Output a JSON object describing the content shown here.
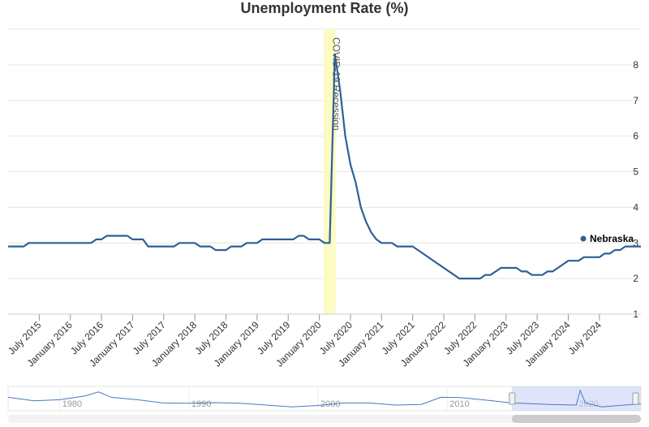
{
  "chart_data": {
    "type": "line",
    "title": "Unemployment Rate (%)",
    "series": [
      {
        "name": "Nebraska",
        "color": "#2f5f98",
        "points": [
          [
            "2015-01",
            2.9
          ],
          [
            "2015-04",
            2.9
          ],
          [
            "2015-05",
            3.0
          ],
          [
            "2015-08",
            3.0
          ],
          [
            "2015-11",
            3.0
          ],
          [
            "2016-02",
            3.0
          ],
          [
            "2016-05",
            3.0
          ],
          [
            "2016-06",
            3.1
          ],
          [
            "2016-07",
            3.1
          ],
          [
            "2016-08",
            3.2
          ],
          [
            "2016-12",
            3.2
          ],
          [
            "2017-01",
            3.1
          ],
          [
            "2017-03",
            3.1
          ],
          [
            "2017-04",
            2.9
          ],
          [
            "2017-09",
            2.9
          ],
          [
            "2017-10",
            3.0
          ],
          [
            "2018-01",
            3.0
          ],
          [
            "2018-02",
            2.9
          ],
          [
            "2018-04",
            2.9
          ],
          [
            "2018-05",
            2.8
          ],
          [
            "2018-07",
            2.8
          ],
          [
            "2018-08",
            2.9
          ],
          [
            "2018-10",
            2.9
          ],
          [
            "2018-11",
            3.0
          ],
          [
            "2019-01",
            3.0
          ],
          [
            "2019-02",
            3.1
          ],
          [
            "2019-08",
            3.1
          ],
          [
            "2019-09",
            3.2
          ],
          [
            "2019-10",
            3.2
          ],
          [
            "2019-11",
            3.1
          ],
          [
            "2020-01",
            3.1
          ],
          [
            "2020-02",
            3.0
          ],
          [
            "2020-03",
            3.0
          ],
          [
            "2020-04",
            8.3
          ],
          [
            "2020-05",
            7.3
          ],
          [
            "2020-06",
            6.0
          ],
          [
            "2020-07",
            5.2
          ],
          [
            "2020-08",
            4.7
          ],
          [
            "2020-09",
            4.0
          ],
          [
            "2020-10",
            3.6
          ],
          [
            "2020-11",
            3.3
          ],
          [
            "2020-12",
            3.1
          ],
          [
            "2021-01",
            3.0
          ],
          [
            "2021-03",
            3.0
          ],
          [
            "2021-04",
            2.9
          ],
          [
            "2021-07",
            2.9
          ],
          [
            "2021-09",
            2.7
          ],
          [
            "2021-12",
            2.4
          ],
          [
            "2022-03",
            2.1
          ],
          [
            "2022-04",
            2.0
          ],
          [
            "2022-08",
            2.0
          ],
          [
            "2022-09",
            2.1
          ],
          [
            "2022-10",
            2.1
          ],
          [
            "2022-11",
            2.2
          ],
          [
            "2022-12",
            2.3
          ],
          [
            "2023-03",
            2.3
          ],
          [
            "2023-04",
            2.2
          ],
          [
            "2023-05",
            2.2
          ],
          [
            "2023-06",
            2.1
          ],
          [
            "2023-08",
            2.1
          ],
          [
            "2023-09",
            2.2
          ],
          [
            "2023-10",
            2.2
          ],
          [
            "2023-11",
            2.3
          ],
          [
            "2024-01",
            2.5
          ],
          [
            "2024-03",
            2.5
          ],
          [
            "2024-04",
            2.6
          ],
          [
            "2024-07",
            2.6
          ],
          [
            "2024-08",
            2.7
          ],
          [
            "2024-09",
            2.7
          ],
          [
            "2024-10",
            2.8
          ],
          [
            "2024-11",
            2.8
          ],
          [
            "2024-12",
            2.9
          ],
          [
            "2025-03",
            2.9
          ]
        ]
      }
    ],
    "x_tick_labels": [
      "July 2015",
      "January 2016",
      "July 2016",
      "January 2017",
      "July 2017",
      "January 2018",
      "July 2018",
      "January 2019",
      "July 2019",
      "January 2020",
      "July 2020",
      "January 2021",
      "July 2021",
      "January 2022",
      "July 2022",
      "January 2023",
      "July 2023",
      "January 2024",
      "July 2024"
    ],
    "x_range": [
      "2015-01",
      "2025-03"
    ],
    "y_ticks": [
      1,
      2,
      3,
      4,
      5,
      6,
      7,
      8
    ],
    "ylim": [
      1,
      9
    ],
    "y_axis_side": "right",
    "grid": true,
    "legend": {
      "entry": "Nebraska",
      "placement": "right, at end of line"
    },
    "recession_band": {
      "label": "COVID-19 Recession",
      "start": "2020-02",
      "end": "2020-04",
      "color": "#fbfbc3"
    },
    "navigator": {
      "tick_labels": [
        "1980",
        "1990",
        "2000",
        "2010",
        "2020"
      ],
      "range": [
        1976,
        2025
      ],
      "selected_range": [
        "2015-01",
        "2025-03"
      ],
      "series": [
        [
          1976,
          0.62
        ],
        [
          1978,
          0.42
        ],
        [
          1980,
          0.48
        ],
        [
          1982,
          0.7
        ],
        [
          1983,
          0.92
        ],
        [
          1984,
          0.62
        ],
        [
          1986,
          0.48
        ],
        [
          1988,
          0.3
        ],
        [
          1990,
          0.28
        ],
        [
          1992,
          0.32
        ],
        [
          1994,
          0.28
        ],
        [
          1996,
          0.18
        ],
        [
          1998,
          0.08
        ],
        [
          2000,
          0.16
        ],
        [
          2002,
          0.3
        ],
        [
          2004,
          0.3
        ],
        [
          2006,
          0.18
        ],
        [
          2008,
          0.22
        ],
        [
          2009.5,
          0.62
        ],
        [
          2011,
          0.6
        ],
        [
          2013,
          0.46
        ],
        [
          2015,
          0.3
        ],
        [
          2018,
          0.22
        ],
        [
          2020,
          0.18
        ],
        [
          2020.3,
          1.0
        ],
        [
          2020.7,
          0.3
        ],
        [
          2022,
          0.08
        ],
        [
          2024,
          0.2
        ],
        [
          2025,
          0.24
        ]
      ]
    }
  },
  "colors": {
    "line": "#2f5f98",
    "grid": "#e6e6e6",
    "axis": "#333333",
    "navigator_mask": "#c8d3f5",
    "navigator_line": "#4a76c2",
    "scrollbar_track": "#f2f2f2",
    "scrollbar_thumb": "#cccccc"
  }
}
